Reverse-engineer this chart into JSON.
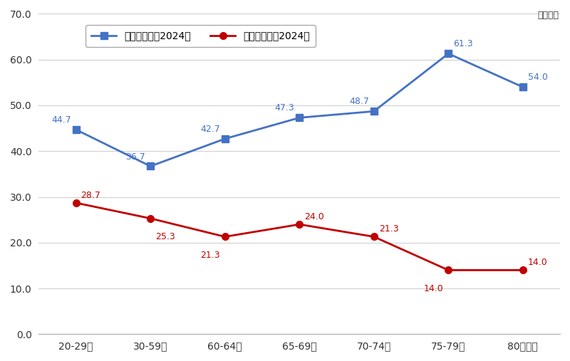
{
  "categories": [
    "20-29歳",
    "30-59歳",
    "60-64歳",
    "65-69歳",
    "70-74歳",
    "75-79歳",
    "80歳以上"
  ],
  "confident_values": [
    44.7,
    36.7,
    42.7,
    47.3,
    48.7,
    61.3,
    54.0
  ],
  "not_confident_values": [
    28.7,
    25.3,
    21.3,
    24.0,
    21.3,
    14.0,
    14.0
  ],
  "confident_color": "#4472C4",
  "not_confident_color": "#C00000",
  "confident_label": "自信がある、2024】",
  "not_confident_label": "自信がない、2024】",
  "ylim": [
    0.0,
    70.0
  ],
  "yticks": [
    0.0,
    10.0,
    20.0,
    30.0,
    40.0,
    50.0,
    60.0,
    70.0
  ],
  "unit_label": "単位：％",
  "background_color": "#ffffff",
  "grid_color": "#d0d0d0",
  "marker_size": 7,
  "line_width": 2.0
}
